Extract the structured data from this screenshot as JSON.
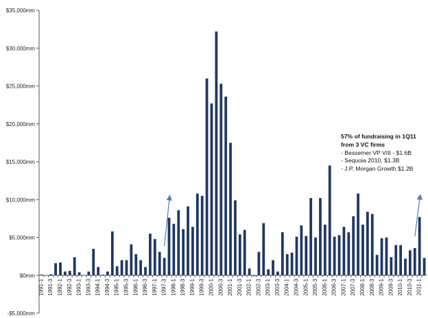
{
  "chart_data": {
    "type": "bar",
    "title": "",
    "xlabel": "",
    "ylabel": "",
    "ylim": [
      -5000,
      35000
    ],
    "yticks": [
      -5000,
      0,
      5000,
      10000,
      15000,
      20000,
      25000,
      30000,
      35000
    ],
    "ytick_labels": [
      "-$5,000mm",
      "$0mm",
      "$5,000mm",
      "$10,000mm",
      "$15,000mm",
      "$20,000mm",
      "$25,000mm",
      "$30,000mm",
      "$35,000mm"
    ],
    "categories": [
      "1991-1",
      "1991-2",
      "1991-3",
      "1991-4",
      "1992-1",
      "1992-2",
      "1992-3",
      "1992-4",
      "1993-1",
      "1993-2",
      "1993-3",
      "1993-4",
      "1994-1",
      "1994-2",
      "1994-3",
      "1994-4",
      "1995-1",
      "1995-2",
      "1995-3",
      "1995-4",
      "1996-1",
      "1996-2",
      "1996-3",
      "1996-4",
      "1997-1",
      "1997-2",
      "1997-3",
      "1997-4",
      "1998-1",
      "1998-2",
      "1998-3",
      "1998-4",
      "1999-1",
      "1999-2",
      "1999-3",
      "1999-4",
      "2000-1",
      "2000-2",
      "2000-3",
      "2000-4",
      "2001-1",
      "2001-2",
      "2001-3",
      "2001-4",
      "2002-1",
      "2002-2",
      "2002-3",
      "2002-4",
      "2003-1",
      "2003-2",
      "2003-3",
      "2003-4",
      "2004-1",
      "2004-2",
      "2004-3",
      "2004-4",
      "2005-1",
      "2005-2",
      "2005-3",
      "2005-4",
      "2006-1",
      "2006-2",
      "2006-3",
      "2006-4",
      "2007-1",
      "2007-2",
      "2007-3",
      "2007-4",
      "2008-1",
      "2008-2",
      "2008-3",
      "2008-4",
      "2009-1",
      "2009-2",
      "2009-3",
      "2009-4",
      "2010-1",
      "2010-2",
      "2010-3",
      "2010-4",
      "2011-1",
      "2011-2"
    ],
    "values": [
      100,
      0,
      150,
      1600,
      1700,
      500,
      600,
      2400,
      400,
      0,
      500,
      3500,
      1100,
      100,
      500,
      5800,
      1200,
      2000,
      2000,
      4100,
      2800,
      2000,
      1100,
      5500,
      4800,
      3100,
      2300,
      7600,
      6800,
      8600,
      6100,
      9100,
      6400,
      10800,
      10500,
      26000,
      22700,
      32200,
      25300,
      23600,
      17500,
      9900,
      5400,
      6000,
      900,
      -100,
      3100,
      6900,
      800,
      2000,
      500,
      5700,
      2800,
      3000,
      5100,
      6600,
      5200,
      10200,
      5000,
      10200,
      6700,
      14500,
      5100,
      5300,
      6400,
      5700,
      7800,
      10800,
      6700,
      8400,
      8100,
      2700,
      4900,
      5000,
      2400,
      4000,
      4000,
      2200,
      3300,
      3600,
      7700,
      2300
    ],
    "bar_color": "#1f3864",
    "label_every": 2,
    "annotation_arrows": [
      {
        "from_category": "1997-3",
        "to_category": "1997-4"
      },
      {
        "from_category": "2010-4",
        "to_category": "2011-1"
      }
    ],
    "arrow_color": "#4a7fba"
  },
  "annotation": {
    "line1": "57% of fundraising in 1Q11",
    "line2": "from 3 VC firms",
    "items": [
      "- Bessemer VP VIII - $1.6B",
      "- Sequoia 2010, $1.3B",
      "- J.P. Morgan Growth $1.2B"
    ]
  }
}
